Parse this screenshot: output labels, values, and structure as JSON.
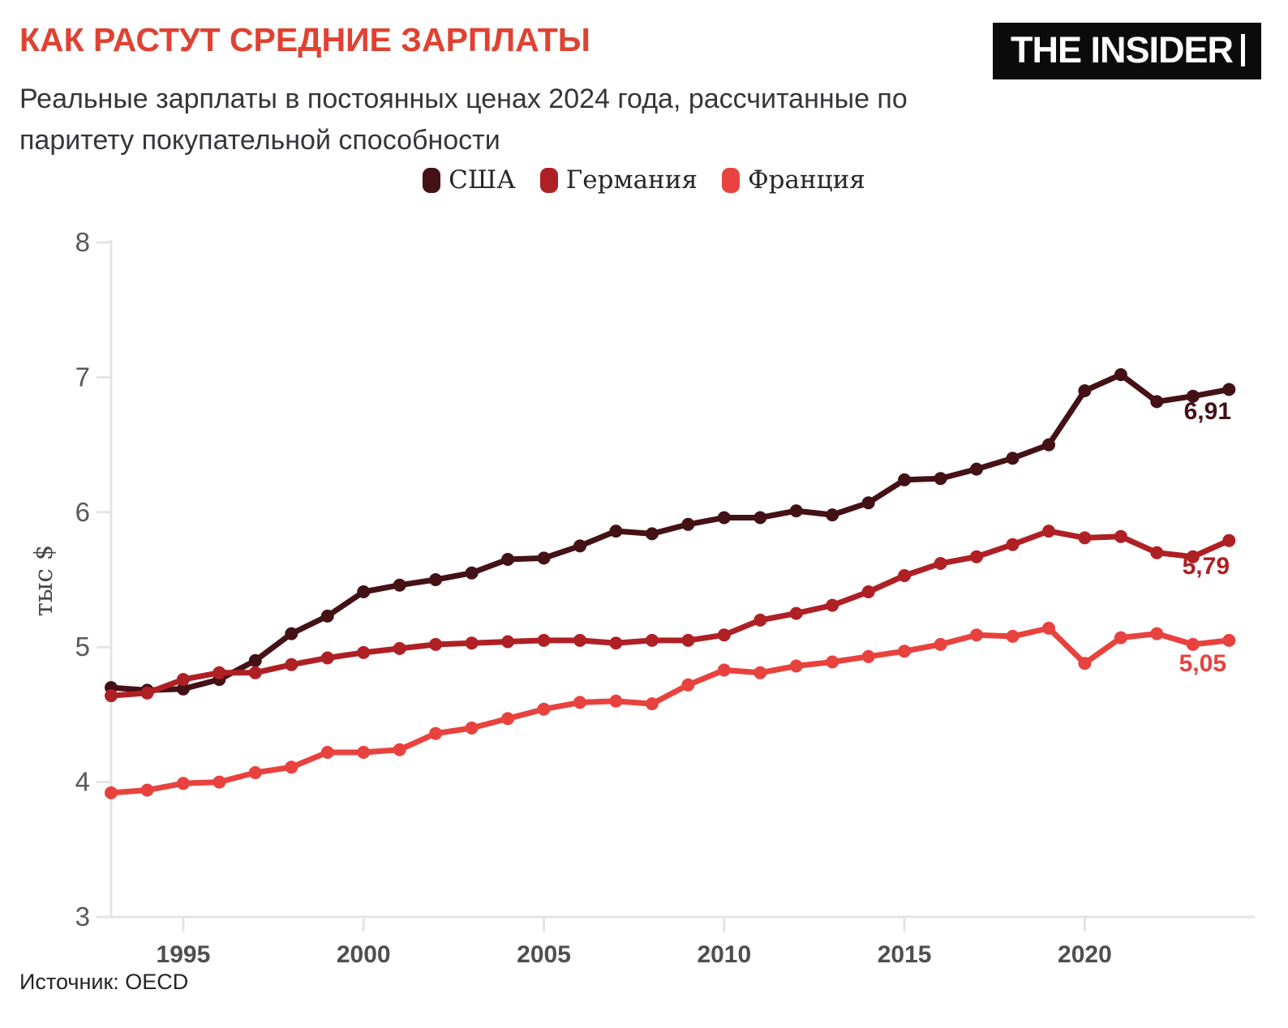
{
  "header": {
    "title": "КАК РАСТУТ СРЕДНИЕ ЗАРПЛАТЫ",
    "subtitle": "Реальные зарплаты в постоянных ценах 2024 года, рассчитанные по паритету покупательной способности",
    "logo": "THE INSIDER"
  },
  "footer": {
    "source": "Источник: OECD"
  },
  "chart_data": {
    "type": "line",
    "title": "КАК РАСТУТ СРЕДНИЕ ЗАРПЛАТЫ",
    "ylabel": "тыс $",
    "xlabel": "",
    "ylim": [
      3,
      8
    ],
    "yticks": [
      3,
      4,
      5,
      6,
      7,
      8
    ],
    "xticks": [
      1995,
      2000,
      2005,
      2010,
      2015,
      2020
    ],
    "grid": false,
    "legend_position": "top",
    "x": [
      1993,
      1994,
      1995,
      1996,
      1997,
      1998,
      1999,
      2000,
      2001,
      2002,
      2003,
      2004,
      2005,
      2006,
      2007,
      2008,
      2009,
      2010,
      2011,
      2012,
      2013,
      2014,
      2015,
      2016,
      2017,
      2018,
      2019,
      2020,
      2021,
      2022,
      2023,
      2024
    ],
    "series": [
      {
        "name": "США",
        "color": "#441116",
        "end_label": "6,91",
        "values": [
          4.7,
          4.68,
          4.69,
          4.76,
          4.9,
          5.1,
          5.23,
          5.41,
          5.46,
          5.5,
          5.55,
          5.65,
          5.66,
          5.75,
          5.86,
          5.84,
          5.91,
          5.96,
          5.96,
          6.01,
          5.98,
          6.07,
          6.24,
          6.25,
          6.32,
          6.4,
          6.5,
          6.9,
          7.02,
          6.82,
          6.86,
          6.91
        ]
      },
      {
        "name": "Германия",
        "color": "#af2025",
        "end_label": "5,79",
        "values": [
          4.64,
          4.66,
          4.76,
          4.81,
          4.81,
          4.87,
          4.92,
          4.96,
          4.99,
          5.02,
          5.03,
          5.04,
          5.05,
          5.05,
          5.03,
          5.05,
          5.05,
          5.09,
          5.2,
          5.25,
          5.31,
          5.41,
          5.53,
          5.62,
          5.67,
          5.76,
          5.86,
          5.81,
          5.82,
          5.7,
          5.67,
          5.79
        ]
      },
      {
        "name": "Франция",
        "color": "#e8423e",
        "end_label": "5,05",
        "values": [
          3.92,
          3.94,
          3.99,
          4.0,
          4.07,
          4.11,
          4.22,
          4.22,
          4.24,
          4.36,
          4.4,
          4.47,
          4.54,
          4.59,
          4.6,
          4.58,
          4.72,
          4.83,
          4.81,
          4.86,
          4.89,
          4.93,
          4.97,
          5.02,
          5.09,
          5.08,
          5.14,
          4.88,
          5.07,
          5.1,
          5.02,
          5.05
        ]
      }
    ]
  }
}
